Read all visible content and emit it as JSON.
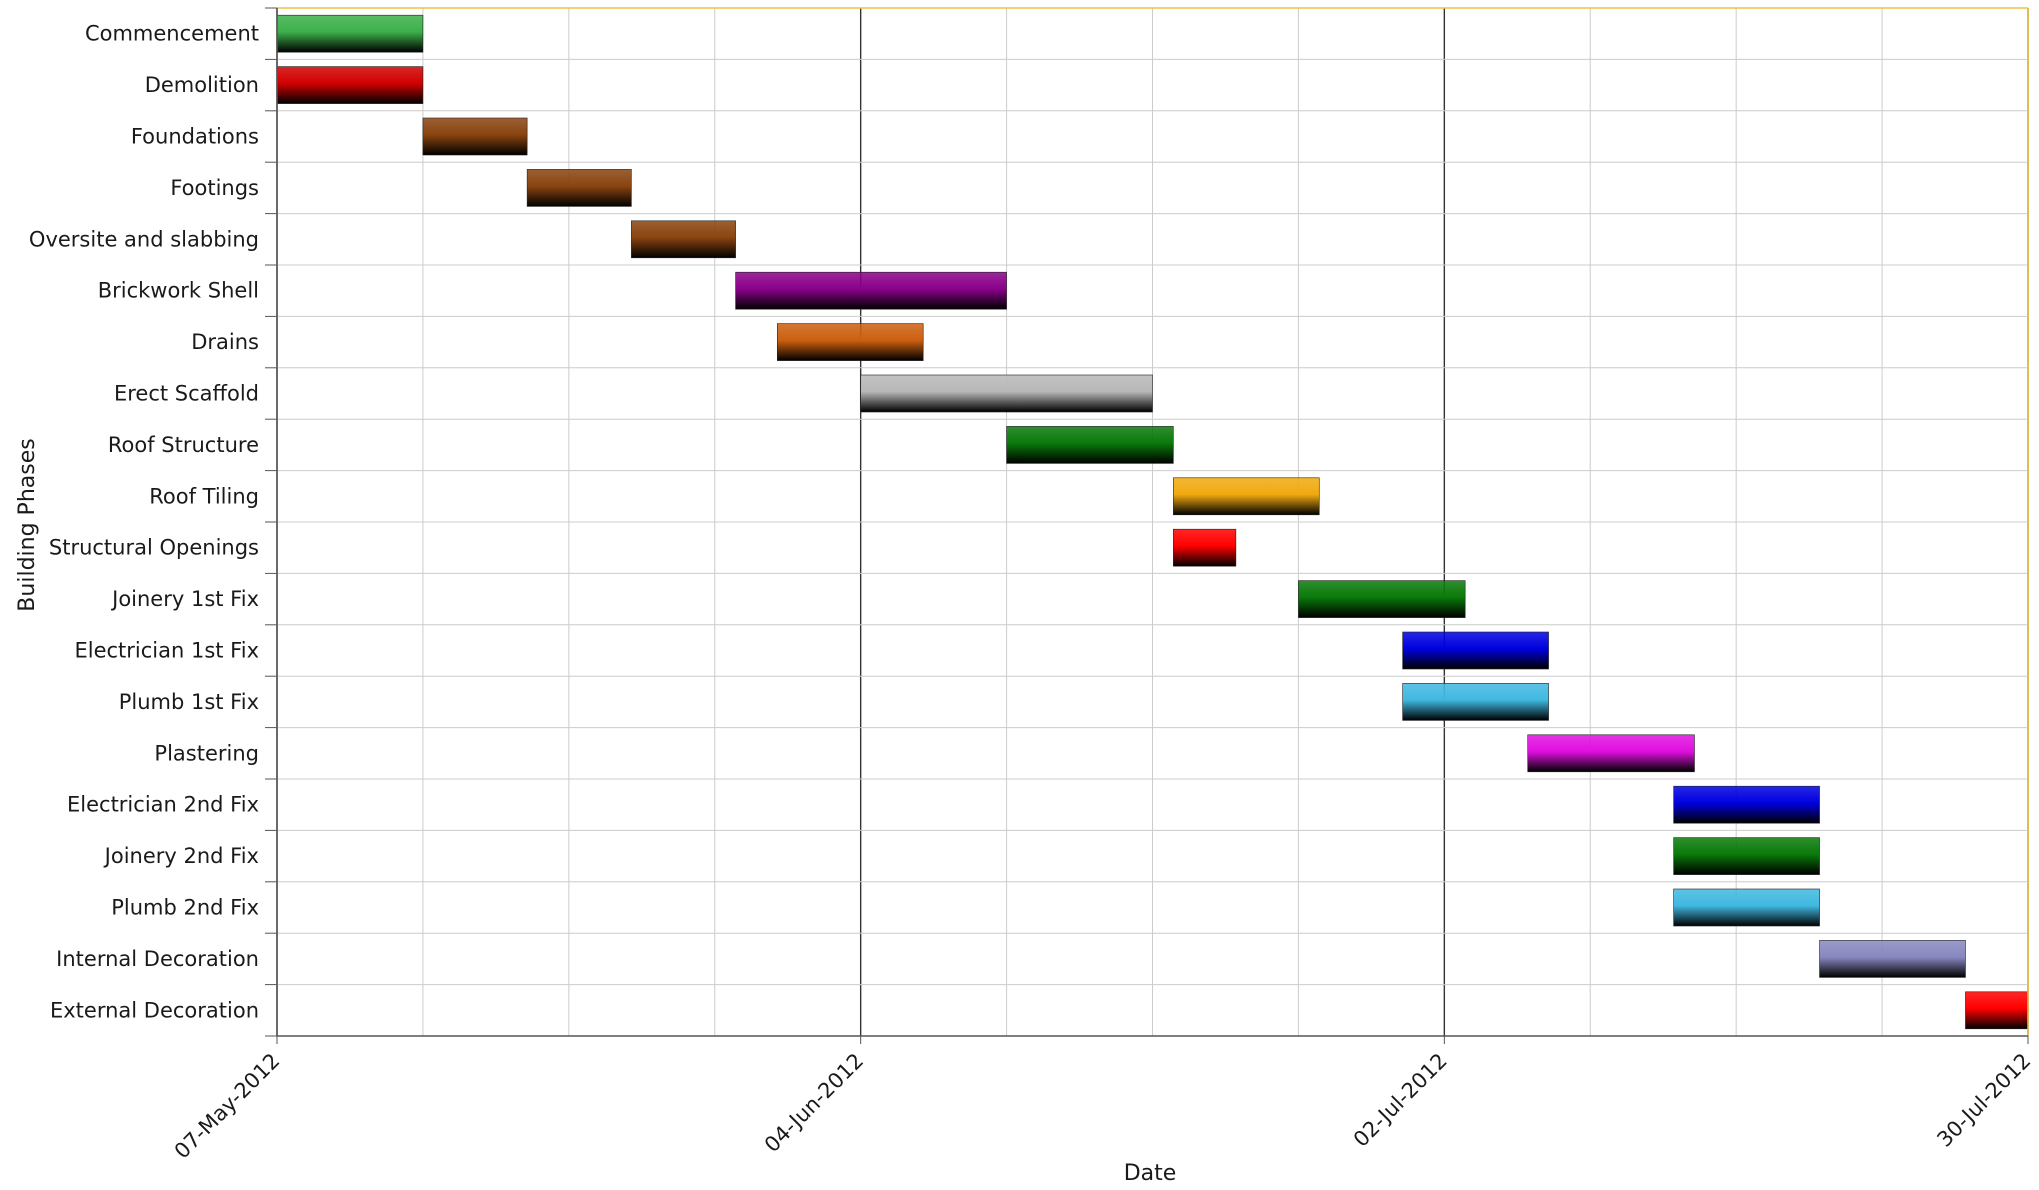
{
  "chart_data": {
    "type": "gantt",
    "xlabel": "Date",
    "ylabel": "Building Phases",
    "x_range": [
      "07-May-2012",
      "30-Jul-2012"
    ],
    "x_ticks": [
      "07-May-2012",
      "04-Jun-2012",
      "02-Jul-2012",
      "30-Jul-2012"
    ],
    "grid": true,
    "tasks": [
      {
        "name": "Commencement",
        "start": "07-May-2012",
        "end": "14-May-2012",
        "color": "#3cb04a"
      },
      {
        "name": "Demolition",
        "start": "07-May-2012",
        "end": "14-May-2012",
        "color": "#d10000"
      },
      {
        "name": "Foundations",
        "start": "14-May-2012",
        "end": "19-May-2012",
        "color": "#8a4410"
      },
      {
        "name": "Footings",
        "start": "19-May-2012",
        "end": "24-May-2012",
        "color": "#8a4410"
      },
      {
        "name": "Oversite and slabbing",
        "start": "24-May-2012",
        "end": "29-May-2012",
        "color": "#8a4410"
      },
      {
        "name": "Brickwork Shell",
        "start": "29-May-2012",
        "end": "11-Jun-2012",
        "color": "#8a008a"
      },
      {
        "name": "Drains",
        "start": "31-May-2012",
        "end": "07-Jun-2012",
        "color": "#cc6010"
      },
      {
        "name": "Erect Scaffold",
        "start": "04-Jun-2012",
        "end": "18-Jun-2012",
        "color": "#b8b8b8"
      },
      {
        "name": "Roof Structure",
        "start": "11-Jun-2012",
        "end": "19-Jun-2012",
        "color": "#0a7a0a"
      },
      {
        "name": "Roof Tiling",
        "start": "19-Jun-2012",
        "end": "26-Jun-2012",
        "color": "#f0aa10"
      },
      {
        "name": "Structural Openings",
        "start": "19-Jun-2012",
        "end": "22-Jun-2012",
        "color": "#ff0000"
      },
      {
        "name": "Joinery 1st Fix",
        "start": "25-Jun-2012",
        "end": "03-Jul-2012",
        "color": "#0a7a0a"
      },
      {
        "name": "Electrician 1st Fix",
        "start": "30-Jun-2012",
        "end": "07-Jul-2012",
        "color": "#0000e0"
      },
      {
        "name": "Plumb 1st Fix",
        "start": "30-Jun-2012",
        "end": "07-Jul-2012",
        "color": "#40b8e0"
      },
      {
        "name": "Plastering",
        "start": "06-Jul-2012",
        "end": "14-Jul-2012",
        "color": "#e010e0"
      },
      {
        "name": "Electrician 2nd Fix",
        "start": "13-Jul-2012",
        "end": "20-Jul-2012",
        "color": "#0000e0"
      },
      {
        "name": "Joinery 2nd Fix",
        "start": "13-Jul-2012",
        "end": "20-Jul-2012",
        "color": "#0a7a0a"
      },
      {
        "name": "Plumb 2nd Fix",
        "start": "13-Jul-2012",
        "end": "20-Jul-2012",
        "color": "#40b8e0"
      },
      {
        "name": "Internal Decoration",
        "start": "20-Jul-2012",
        "end": "27-Jul-2012",
        "color": "#8888c0"
      },
      {
        "name": "External Decoration",
        "start": "27-Jul-2012",
        "end": "30-Jul-2012",
        "color": "#ff0000"
      }
    ]
  },
  "colors": {
    "frame": "#f0c040",
    "grid_minor": "#cccccc",
    "grid_major": "#333333"
  }
}
